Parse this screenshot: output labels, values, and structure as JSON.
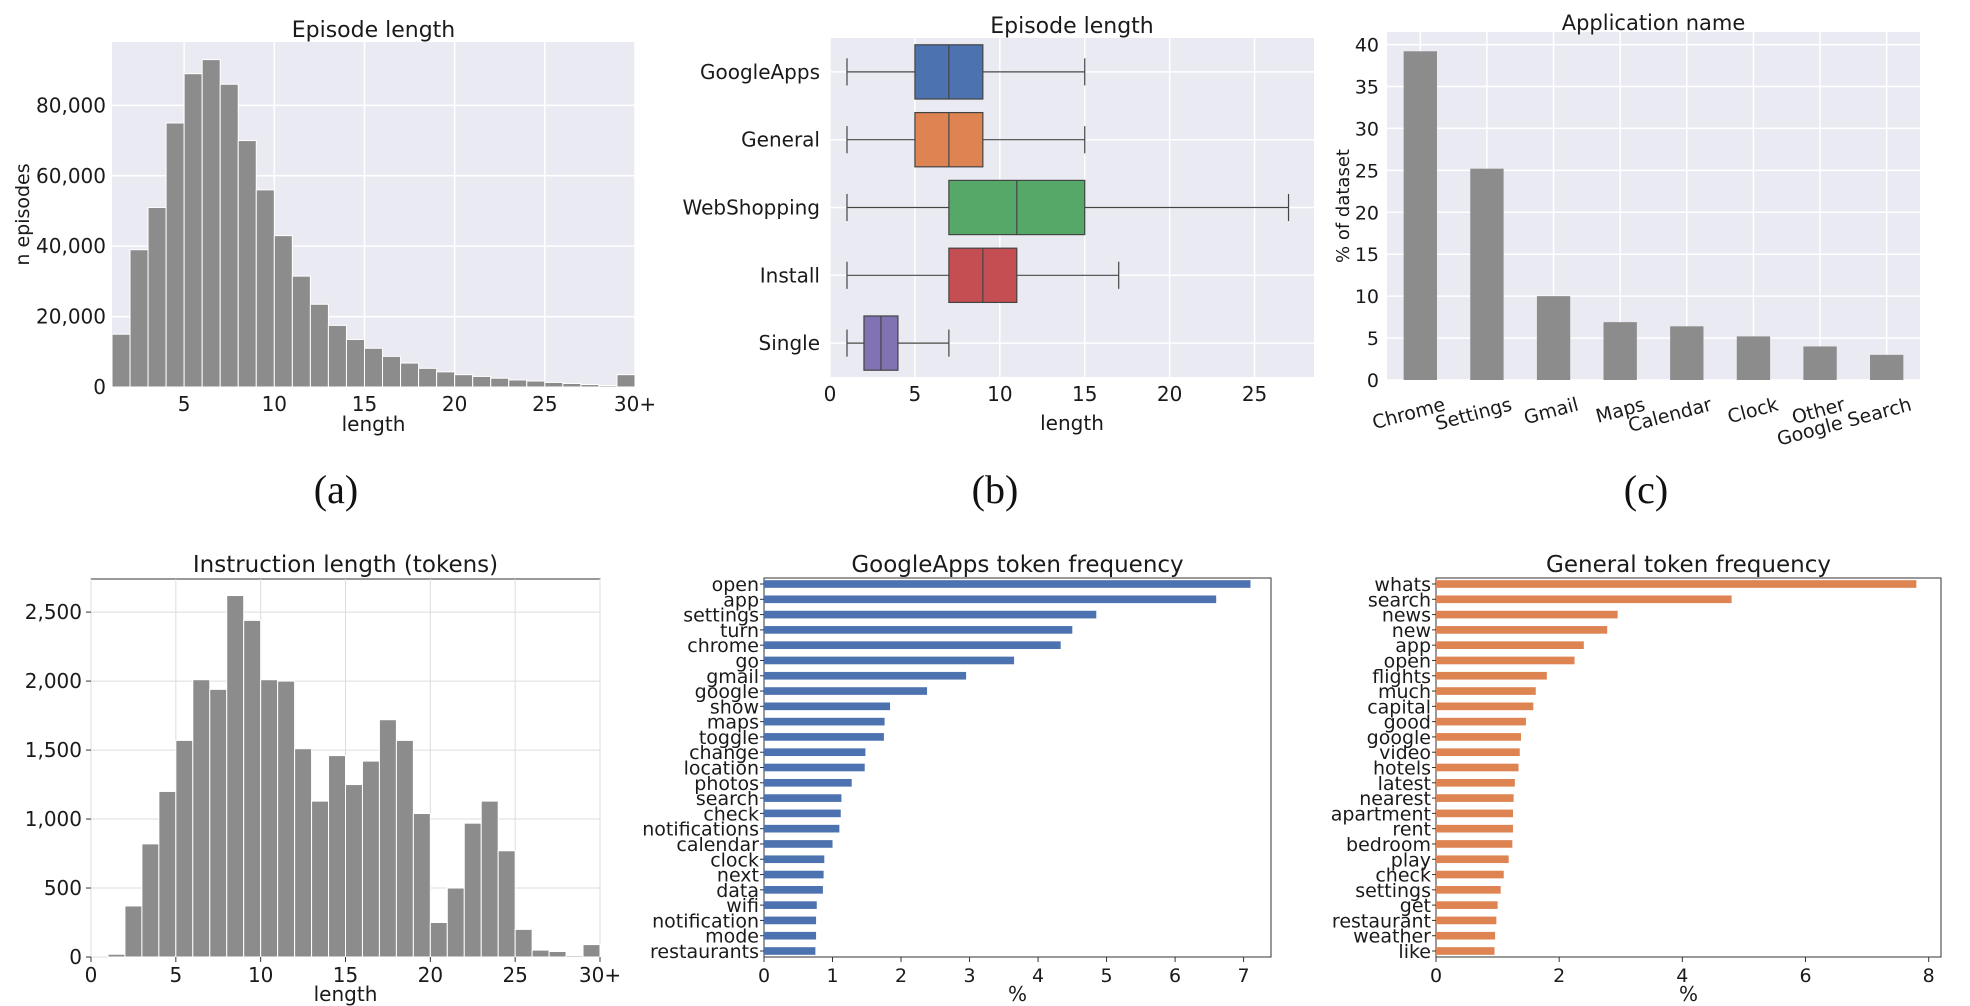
{
  "panel_labels": {
    "a": "(a)",
    "b": "(b)",
    "c": "(c)"
  },
  "chart_data": [
    {
      "id": "episode-hist",
      "type": "bar",
      "title": "Episode length",
      "xlabel": "length",
      "ylabel": "n episodes",
      "xlim": [
        1,
        30
      ],
      "ylim": [
        0,
        98000
      ],
      "grid": true,
      "x_ticks": [
        5,
        10,
        15,
        20,
        25,
        30
      ],
      "x_tick_labels": [
        "5",
        "10",
        "15",
        "20",
        "25",
        "30+"
      ],
      "y_ticks": [
        0,
        20000,
        40000,
        60000,
        80000
      ],
      "y_tick_labels": [
        "0",
        "20,000",
        "40,000",
        "60,000",
        "80,000"
      ],
      "bin_starts": [
        1,
        2,
        3,
        4,
        5,
        6,
        7,
        8,
        9,
        10,
        11,
        12,
        13,
        14,
        15,
        16,
        17,
        18,
        19,
        20,
        21,
        22,
        23,
        24,
        25,
        26,
        27,
        28,
        29
      ],
      "bin_width": 1,
      "values": [
        15000,
        39000,
        51000,
        75000,
        89000,
        93000,
        86000,
        70000,
        56000,
        43000,
        31500,
        23500,
        17500,
        13500,
        11000,
        8700,
        6800,
        5300,
        4300,
        3500,
        3000,
        2500,
        2000,
        1700,
        1300,
        1000,
        700,
        400,
        3500
      ]
    },
    {
      "id": "episode-box",
      "type": "box",
      "title": "Episode length",
      "xlabel": "length",
      "xlim": [
        0,
        28.5
      ],
      "grid": true,
      "x_ticks": [
        0,
        5,
        10,
        15,
        20,
        25
      ],
      "x_tick_labels": [
        "0",
        "5",
        "10",
        "15",
        "20",
        "25"
      ],
      "series": [
        {
          "name": "GoogleApps",
          "whisker_low": 1,
          "q1": 5,
          "median": 7,
          "q3": 9,
          "whisker_high": 15,
          "color": "#4c72b0"
        },
        {
          "name": "General",
          "whisker_low": 1,
          "q1": 5,
          "median": 7,
          "q3": 9,
          "whisker_high": 15,
          "color": "#dd8452"
        },
        {
          "name": "WebShopping",
          "whisker_low": 1,
          "q1": 7,
          "median": 11,
          "q3": 15,
          "whisker_high": 27,
          "color": "#55a868"
        },
        {
          "name": "Install",
          "whisker_low": 1,
          "q1": 7,
          "median": 9,
          "q3": 11,
          "whisker_high": 17,
          "color": "#c44e52"
        },
        {
          "name": "Single",
          "whisker_low": 1,
          "q1": 2,
          "median": 3,
          "q3": 4,
          "whisker_high": 7,
          "color": "#8172b3"
        }
      ]
    },
    {
      "id": "app-bar",
      "type": "bar",
      "title": "Application name",
      "ylabel": "% of dataset",
      "ylim": [
        0,
        41.5
      ],
      "grid": true,
      "y_ticks": [
        0,
        5,
        10,
        15,
        20,
        25,
        30,
        35,
        40
      ],
      "y_tick_labels": [
        "0",
        "5",
        "10",
        "15",
        "20",
        "25",
        "30",
        "35",
        "40"
      ],
      "categories": [
        "Chrome",
        "Settings",
        "Gmail",
        "Maps",
        "Calendar",
        "Clock",
        "Other",
        "Google Search"
      ],
      "values": [
        39.2,
        25.2,
        10.0,
        6.9,
        6.4,
        5.2,
        4.0,
        3.0
      ]
    },
    {
      "id": "instruction-hist",
      "type": "bar",
      "title": "Instruction length (tokens)",
      "xlabel": "length",
      "xlim": [
        0,
        30
      ],
      "ylim": [
        0,
        2740
      ],
      "grid": true,
      "x_ticks": [
        0,
        5,
        10,
        15,
        20,
        25,
        30
      ],
      "x_tick_labels": [
        "0",
        "5",
        "10",
        "15",
        "20",
        "25",
        "30+"
      ],
      "y_ticks": [
        0,
        500,
        1000,
        1500,
        2000,
        2500
      ],
      "y_tick_labels": [
        "0",
        "500",
        "1,000",
        "1,500",
        "2,000",
        "2,500"
      ],
      "bin_starts": [
        1,
        2,
        3,
        4,
        5,
        6,
        7,
        8,
        9,
        10,
        11,
        12,
        13,
        14,
        15,
        16,
        17,
        18,
        19,
        20,
        21,
        22,
        23,
        24,
        25,
        26,
        27,
        28,
        29
      ],
      "bin_width": 1,
      "values": [
        20,
        370,
        820,
        1200,
        1570,
        2010,
        1940,
        2620,
        2440,
        2010,
        2000,
        1510,
        1130,
        1460,
        1250,
        1420,
        1720,
        1570,
        1040,
        250,
        500,
        970,
        1130,
        770,
        200,
        50,
        40,
        10,
        90
      ]
    },
    {
      "id": "googleapps-tokens",
      "type": "bar",
      "orientation": "horizontal",
      "title": "GoogleApps token frequency",
      "xlabel": "%",
      "xlim": [
        0,
        7.4
      ],
      "x_ticks": [
        0,
        1,
        2,
        3,
        4,
        5,
        6,
        7
      ],
      "x_tick_labels": [
        "0",
        "1",
        "2",
        "3",
        "4",
        "5",
        "6",
        "7"
      ],
      "color": "#4c72b0",
      "categories": [
        "open",
        "app",
        "settings",
        "turn",
        "chrome",
        "go",
        "gmail",
        "google",
        "show",
        "maps",
        "toggle",
        "change",
        "location",
        "photos",
        "search",
        "check",
        "notifications",
        "calendar",
        "clock",
        "next",
        "data",
        "wifi",
        "notification",
        "mode",
        "restaurants"
      ],
      "values": [
        7.1,
        6.6,
        4.85,
        4.5,
        4.33,
        3.65,
        2.95,
        2.38,
        1.84,
        1.76,
        1.75,
        1.48,
        1.47,
        1.28,
        1.13,
        1.12,
        1.1,
        1.0,
        0.88,
        0.87,
        0.86,
        0.77,
        0.76,
        0.76,
        0.75
      ]
    },
    {
      "id": "general-tokens",
      "type": "bar",
      "orientation": "horizontal",
      "title": "General token frequency",
      "xlabel": "%",
      "xlim": [
        0,
        8.2
      ],
      "x_ticks": [
        0,
        2,
        4,
        6,
        8
      ],
      "x_tick_labels": [
        "0",
        "2",
        "4",
        "6",
        "8"
      ],
      "color": "#dd8452",
      "categories": [
        "whats",
        "search",
        "news",
        "new",
        "app",
        "open",
        "flights",
        "much",
        "capital",
        "good",
        "google",
        "video",
        "hotels",
        "latest",
        "nearest",
        "apartment",
        "rent",
        "bedroom",
        "play",
        "check",
        "settings",
        "get",
        "restaurant",
        "weather",
        "like"
      ],
      "values": [
        7.8,
        4.8,
        2.95,
        2.78,
        2.4,
        2.25,
        1.8,
        1.62,
        1.58,
        1.46,
        1.38,
        1.36,
        1.34,
        1.28,
        1.26,
        1.25,
        1.25,
        1.24,
        1.18,
        1.1,
        1.05,
        1.0,
        0.98,
        0.96,
        0.95
      ]
    }
  ]
}
